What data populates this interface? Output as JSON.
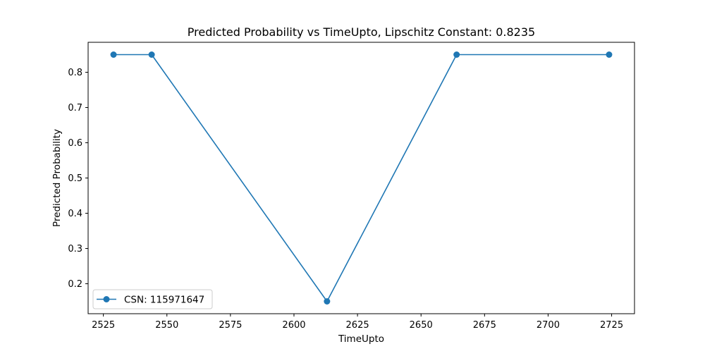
{
  "chart_data": {
    "type": "line",
    "title": "Predicted Probability vs TimeUpto, Lipschitz Constant: 0.8235",
    "xlabel": "TimeUpto",
    "ylabel": "Predicted Probability",
    "xlim": [
      2519,
      2734
    ],
    "ylim": [
      0.115,
      0.885
    ],
    "xticks": [
      2525,
      2550,
      2575,
      2600,
      2625,
      2650,
      2675,
      2700,
      2725
    ],
    "yticks": [
      0.2,
      0.3,
      0.4,
      0.5,
      0.6,
      0.7,
      0.8
    ],
    "grid": false,
    "legend_position": "lower-left",
    "series": [
      {
        "name": "CSN: 115971647",
        "color": "#1f77b4",
        "marker": "circle",
        "x": [
          2529,
          2544,
          2613,
          2664,
          2724
        ],
        "y": [
          0.85,
          0.85,
          0.15,
          0.85,
          0.85
        ]
      }
    ]
  }
}
